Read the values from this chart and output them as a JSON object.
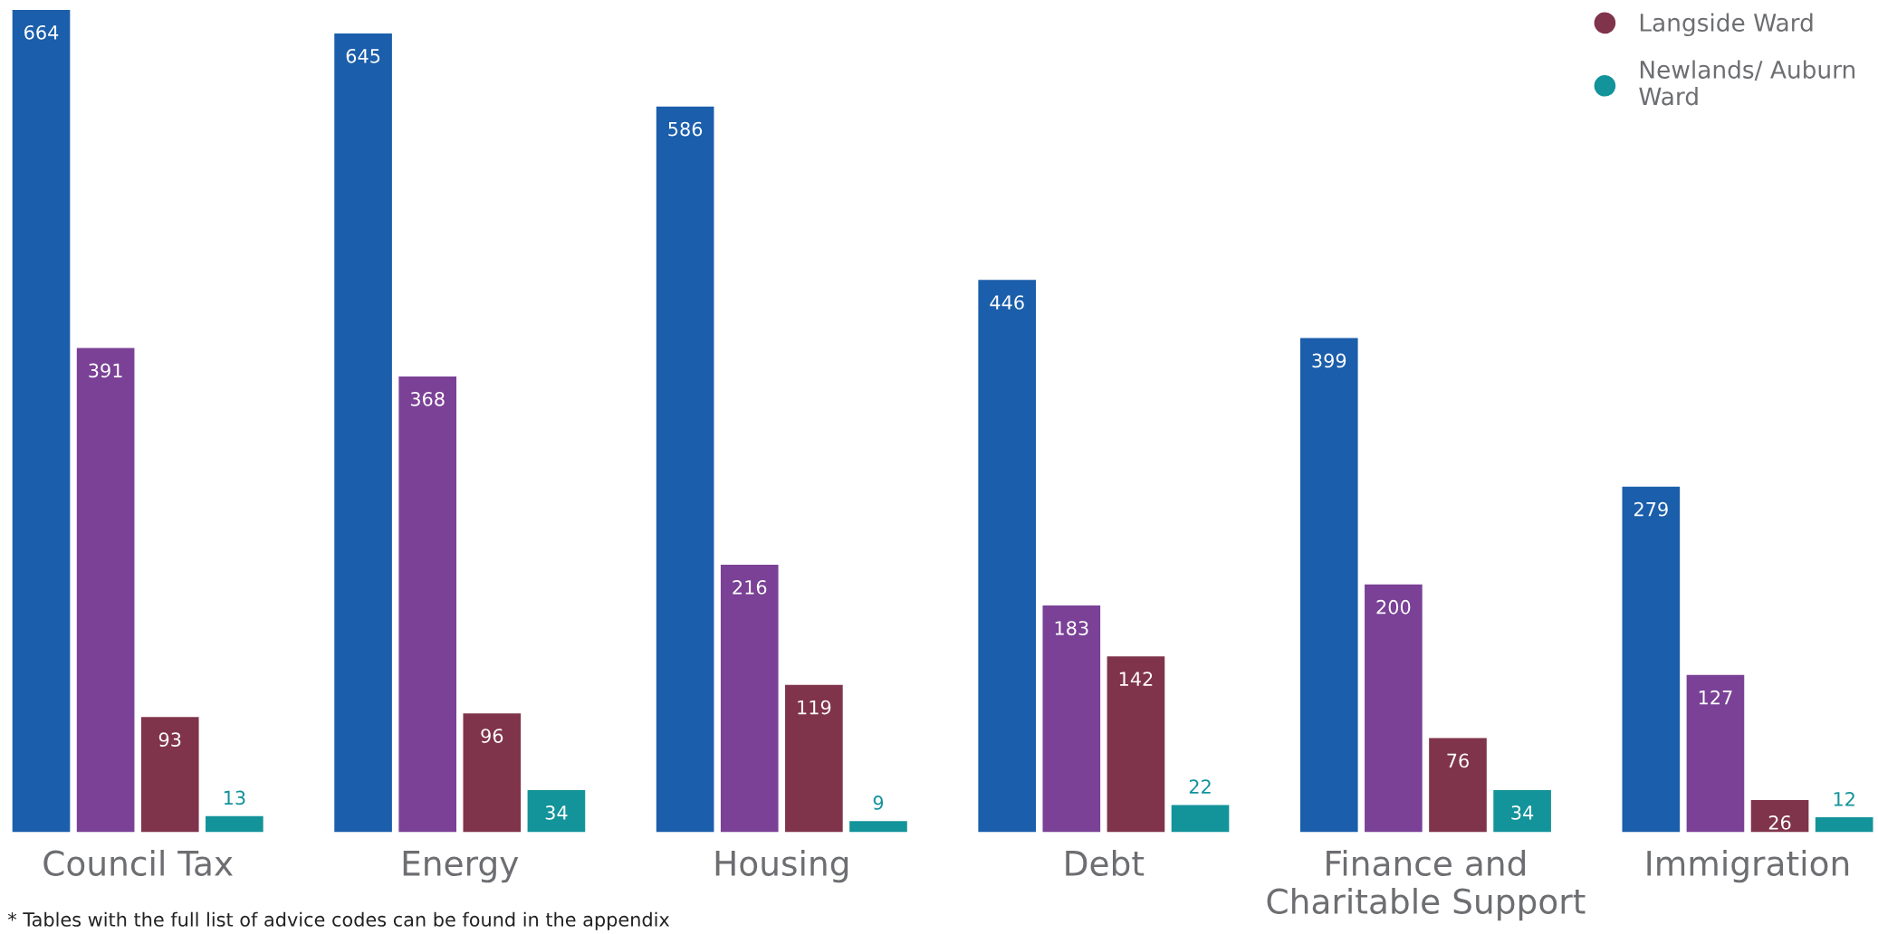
{
  "chart_data": {
    "type": "bar",
    "categories": [
      "Council Tax",
      "Energy",
      "Housing",
      "Debt",
      "Finance and\nCharitable Support",
      "Immigration"
    ],
    "series": [
      {
        "name": null,
        "color": "#1b5eab",
        "values": [
          664,
          645,
          586,
          446,
          399,
          279
        ]
      },
      {
        "name": null,
        "color": "#7a4196",
        "values": [
          391,
          368,
          216,
          183,
          200,
          127
        ]
      },
      {
        "name": "Langside Ward",
        "color": "#80344c",
        "values": [
          93,
          96,
          119,
          142,
          76,
          26
        ]
      },
      {
        "name": "Newlands/ Auburn\nWard",
        "color": "#13939a",
        "values": [
          13,
          34,
          9,
          22,
          34,
          12
        ]
      }
    ],
    "data_labels": true,
    "tick_labels": "x",
    "grid": false,
    "legend": "top right",
    "annotations": [
      "* Tables with the full list of advice codes can be found in the appendix"
    ]
  }
}
